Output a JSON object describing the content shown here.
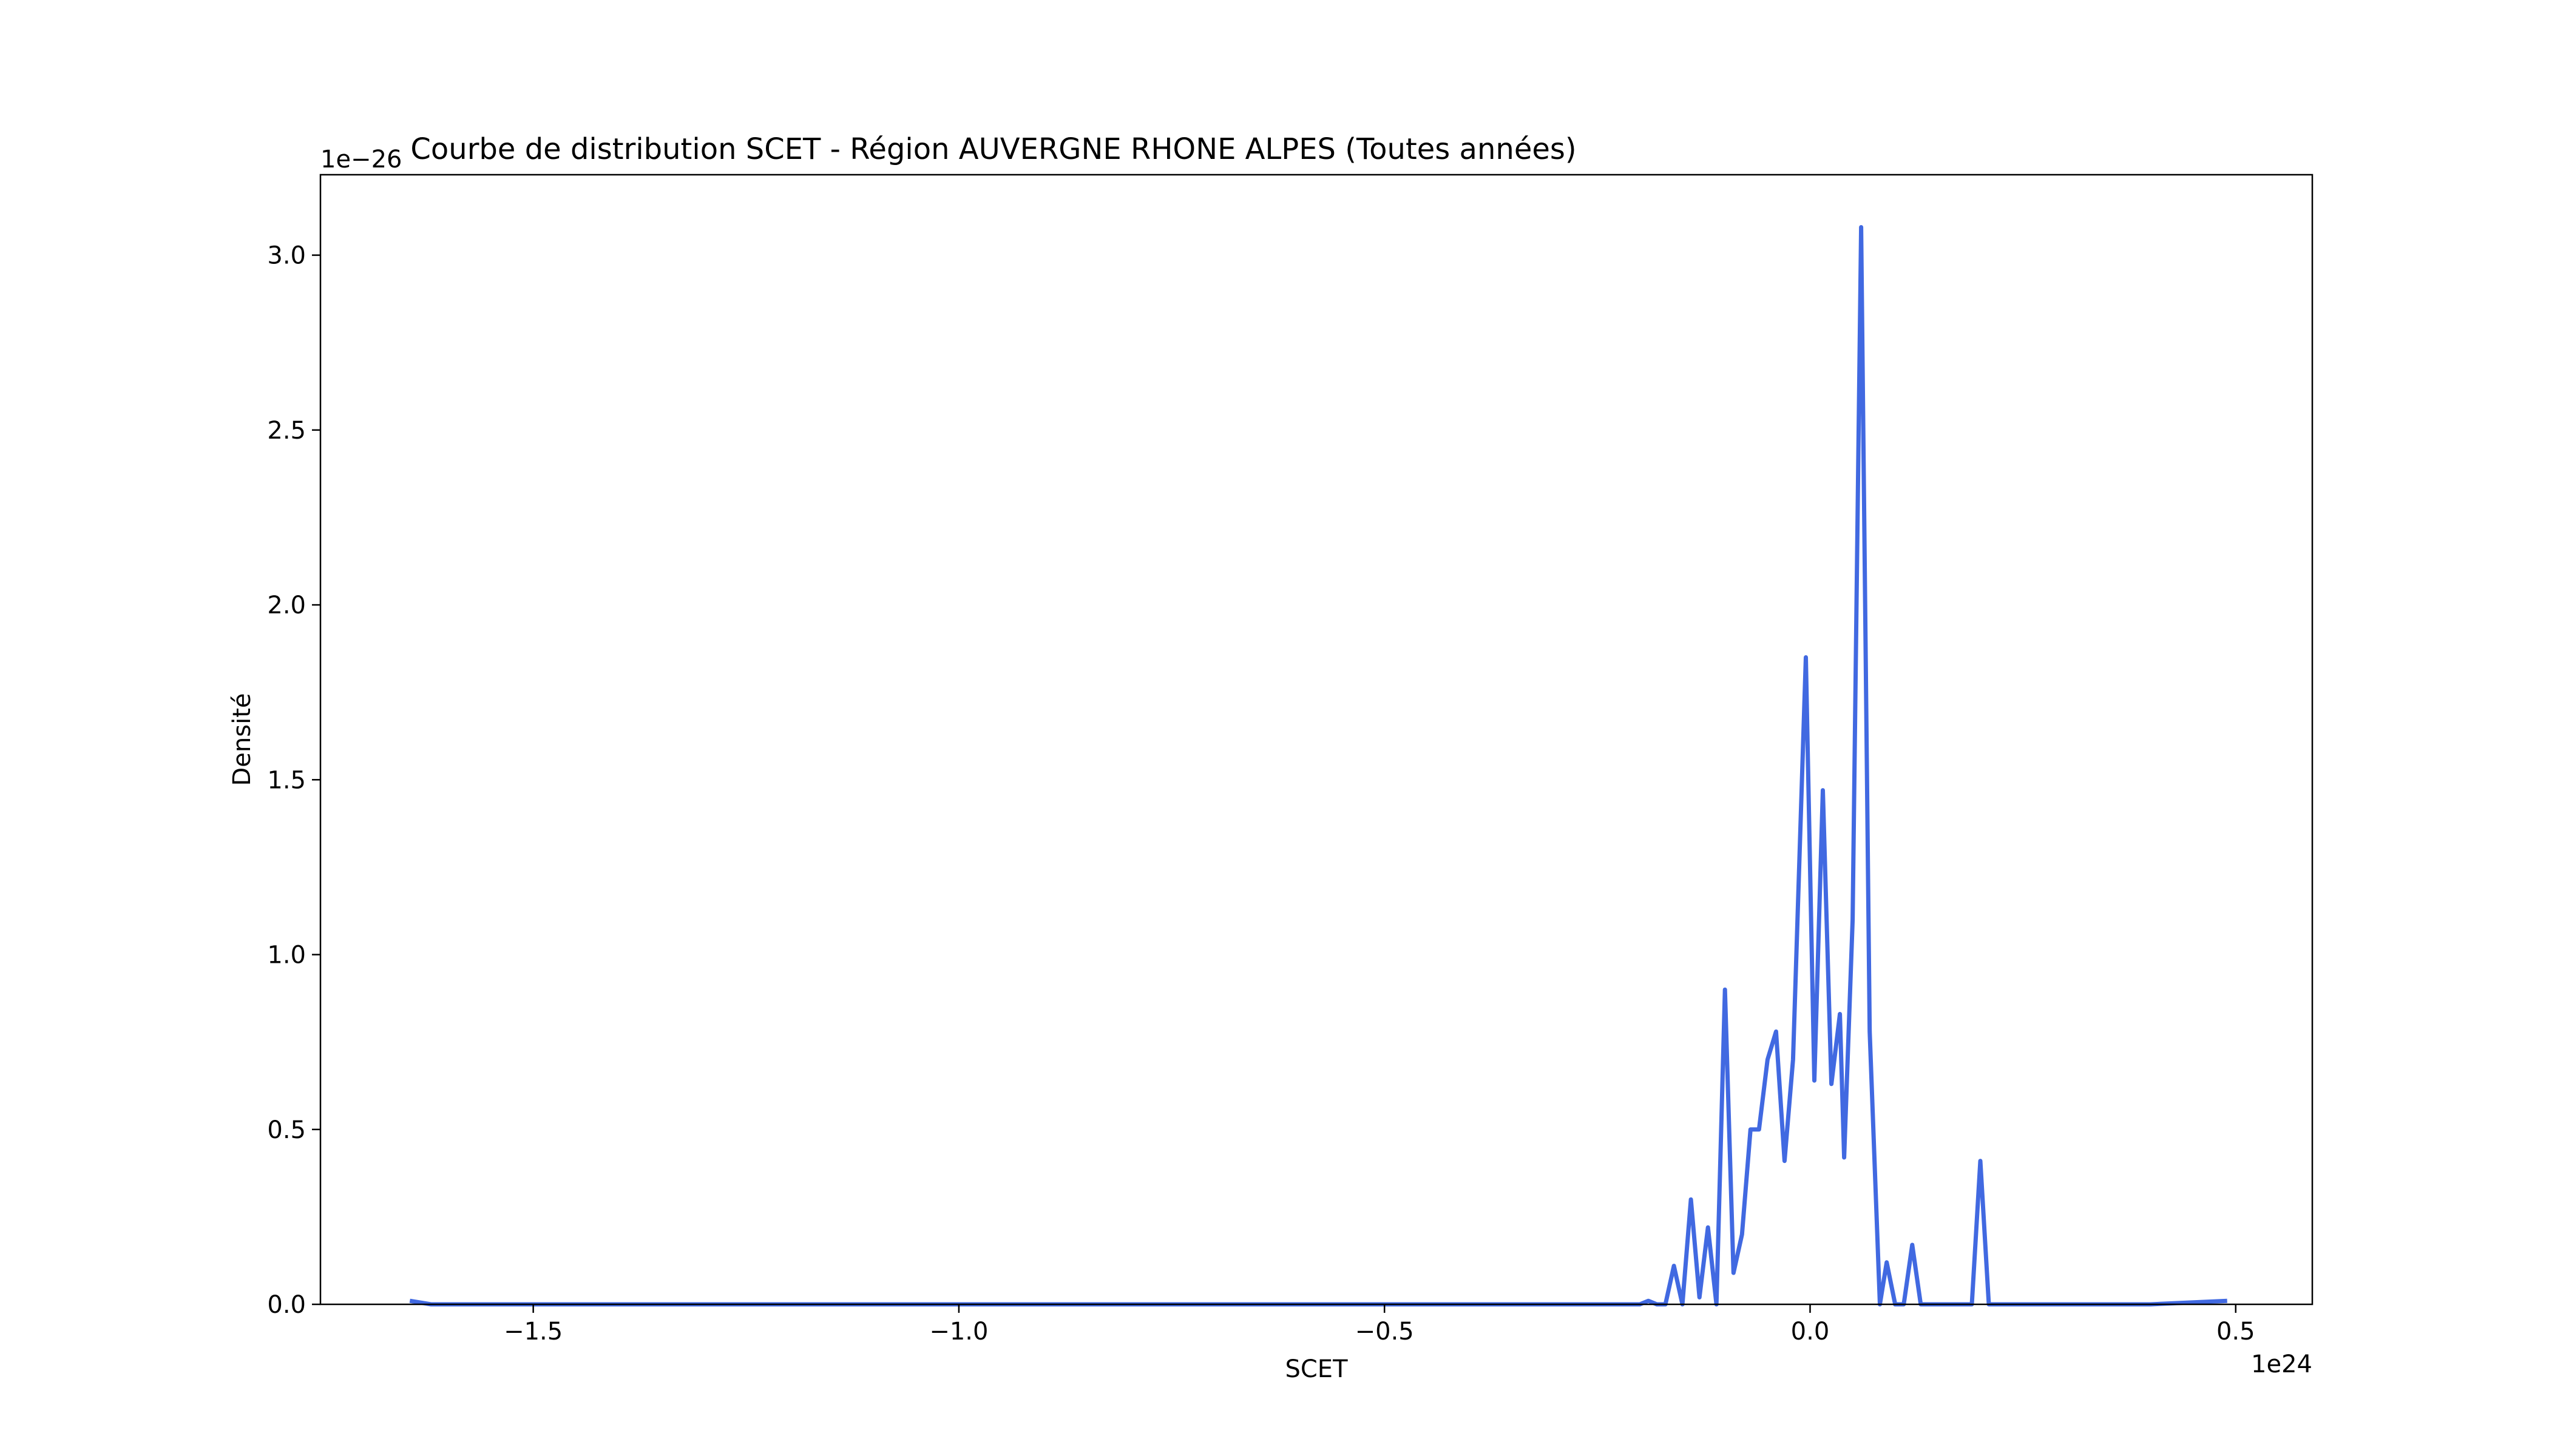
{
  "chart_data": {
    "type": "line",
    "title": "Courbe de distribution SCET - Région AUVERGNE RHONE ALPES (Toutes années)",
    "xlabel": "SCET",
    "ylabel": "Densité",
    "x_offset_label": "1e24",
    "y_offset_label": "1e−26",
    "xlim": [
      -1.75,
      0.59
    ],
    "ylim": [
      0,
      3.23
    ],
    "x_ticks": [
      -1.5,
      -1.0,
      -0.5,
      0.0,
      0.5
    ],
    "x_tick_labels": [
      "−1.5",
      "−1.0",
      "−0.5",
      "0.0",
      "0.5"
    ],
    "y_ticks": [
      0.0,
      0.5,
      1.0,
      1.5,
      2.0,
      2.5,
      3.0
    ],
    "y_tick_labels": [
      "0.0",
      "0.5",
      "1.0",
      "1.5",
      "2.0",
      "2.5",
      "3.0"
    ],
    "grid": false,
    "line_color": "#4169e1",
    "series": [
      {
        "x": [
          -1.645,
          -1.62,
          -1.5,
          -1.0,
          -0.5,
          -0.25,
          -0.2,
          -0.19,
          -0.18,
          -0.17,
          -0.16,
          -0.15,
          -0.14,
          -0.13,
          -0.12,
          -0.11,
          -0.1,
          -0.09,
          -0.08,
          -0.07,
          -0.06,
          -0.05,
          -0.04,
          -0.03,
          -0.02,
          -0.005,
          0.005,
          0.015,
          0.025,
          0.035,
          0.04,
          0.05,
          0.06,
          0.07,
          0.082,
          0.09,
          0.1,
          0.11,
          0.12,
          0.13,
          0.135,
          0.145,
          0.16,
          0.19,
          0.2,
          0.21,
          0.3,
          0.4,
          0.49
        ],
        "y": [
          0.01,
          0.0,
          0.0,
          0.0,
          0.0,
          0.0,
          0.0,
          0.01,
          0.0,
          0.0,
          0.11,
          0.0,
          0.3,
          0.02,
          0.22,
          0.0,
          0.9,
          0.09,
          0.2,
          0.5,
          0.5,
          0.7,
          0.78,
          0.41,
          0.7,
          1.85,
          0.64,
          1.47,
          0.63,
          0.83,
          0.42,
          1.1,
          3.08,
          0.78,
          0.0,
          0.12,
          0.0,
          0.0,
          0.17,
          0.0,
          0.0,
          0.0,
          0.0,
          0.0,
          0.41,
          0.0,
          0.0,
          0.0,
          0.01
        ]
      }
    ]
  }
}
